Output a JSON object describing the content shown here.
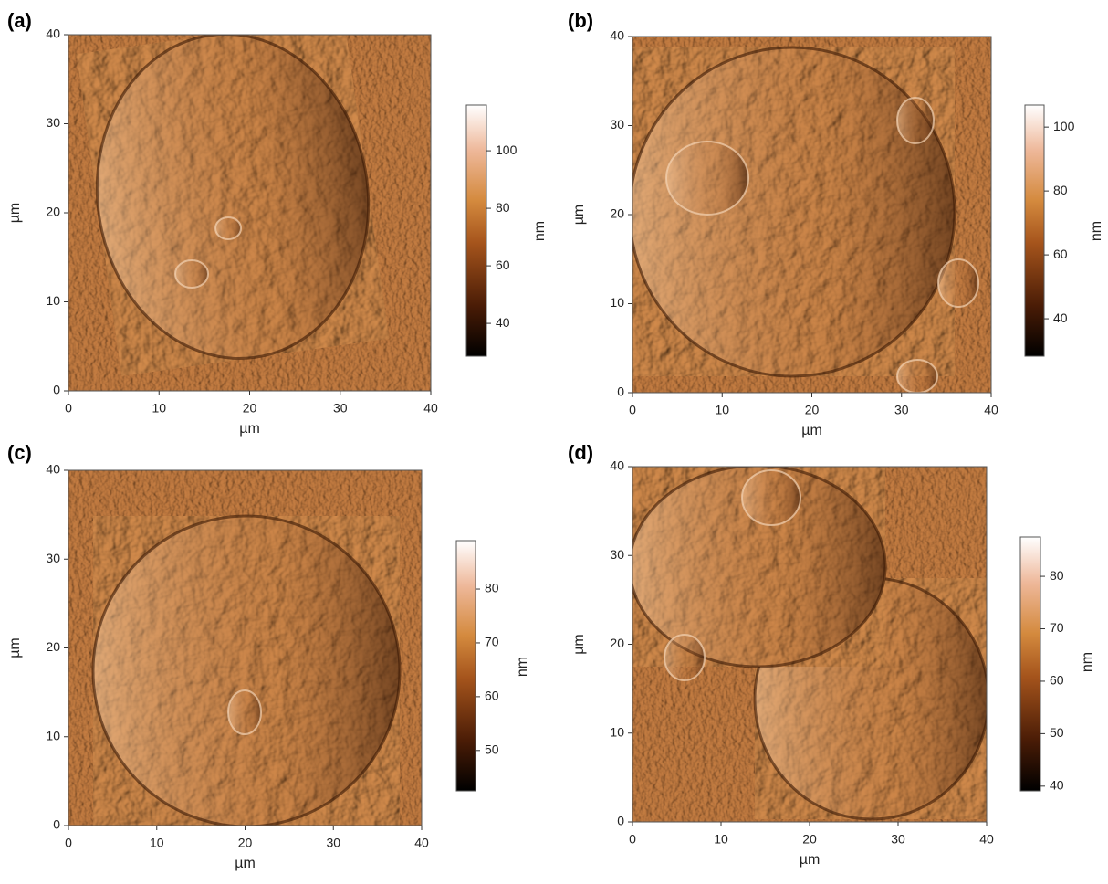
{
  "chart_data": [
    {
      "type": "image",
      "panel": "(a)",
      "xlabel": "µm",
      "ylabel": "µm",
      "xlim": [
        0,
        40
      ],
      "ylim": [
        0,
        40
      ],
      "xticks": [
        0,
        10,
        20,
        30,
        40
      ],
      "yticks": [
        0,
        10,
        20,
        30,
        40
      ],
      "colorbar": {
        "label": "nm",
        "lim": [
          28.6,
          115.9
        ],
        "ticks": [
          40,
          60,
          80,
          100
        ]
      }
    },
    {
      "type": "image",
      "panel": "(b)",
      "xlabel": "µm",
      "ylabel": "µm",
      "xlim": [
        0,
        40
      ],
      "ylim": [
        0,
        40
      ],
      "xticks": [
        0,
        10,
        20,
        30,
        40
      ],
      "yticks": [
        0,
        10,
        20,
        30,
        40
      ],
      "colorbar": {
        "label": "nm",
        "lim": [
          28.3,
          106.9
        ],
        "ticks": [
          40,
          60,
          80,
          100
        ]
      }
    },
    {
      "type": "image",
      "panel": "(c)",
      "xlabel": "µm",
      "ylabel": "µm",
      "xlim": [
        0,
        40
      ],
      "ylim": [
        0,
        40
      ],
      "xticks": [
        0,
        10,
        20,
        30,
        40
      ],
      "yticks": [
        0,
        10,
        20,
        30,
        40
      ],
      "colorbar": {
        "label": "nm",
        "lim": [
          42.5,
          89
        ],
        "ticks": [
          50,
          60,
          70,
          80
        ]
      }
    },
    {
      "type": "image",
      "panel": "(d)",
      "xlabel": "µm",
      "ylabel": "µm",
      "xlim": [
        0,
        40
      ],
      "ylim": [
        0,
        40
      ],
      "xticks": [
        0,
        10,
        20,
        30,
        40
      ],
      "yticks": [
        0,
        10,
        20,
        30,
        40
      ],
      "colorbar": {
        "label": "nm",
        "lim": [
          39.1,
          87.5
        ],
        "ticks": [
          40,
          50,
          60,
          70,
          80
        ]
      }
    }
  ]
}
